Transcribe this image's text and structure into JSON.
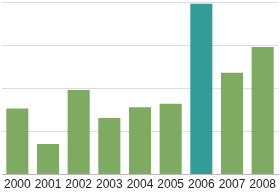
{
  "chart_data": {
    "type": "bar",
    "categories": [
      "2000",
      "2001",
      "2002",
      "2003",
      "2004",
      "2005",
      "2006",
      "2007",
      "2008"
    ],
    "values": [
      1.53,
      0.71,
      1.96,
      1.31,
      1.56,
      1.64,
      3.96,
      2.36,
      2.96
    ],
    "colors": [
      "#7eaa62",
      "#7eaa62",
      "#7eaa62",
      "#7eaa62",
      "#7eaa62",
      "#7eaa62",
      "#349d9a",
      "#7eaa62",
      "#7eaa62"
    ],
    "ylim": [
      0,
      4
    ],
    "yticks": [
      0,
      1,
      2,
      3,
      4
    ],
    "grid": true,
    "tick_labels": "x"
  }
}
